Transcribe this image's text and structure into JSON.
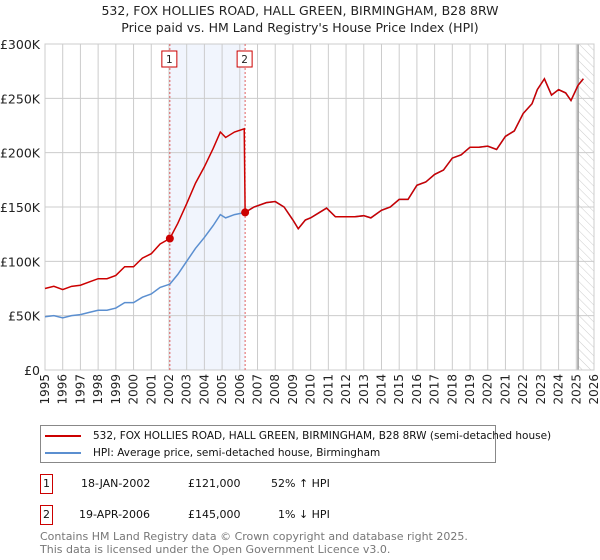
{
  "chart_data": {
    "type": "line",
    "title": "532, FOX HOLLIES ROAD, HALL GREEN, BIRMINGHAM, B28 8RW",
    "subtitle": "Price paid vs. HM Land Registry's House Price Index (HPI)",
    "xlim": [
      1995,
      2026
    ],
    "ylim": [
      0,
      300000
    ],
    "grid": true,
    "x_ticks": [
      "1995",
      "1996",
      "1997",
      "1998",
      "1999",
      "2000",
      "2001",
      "2002",
      "2003",
      "2004",
      "2005",
      "2006",
      "2007",
      "2008",
      "2009",
      "2010",
      "2011",
      "2012",
      "2013",
      "2014",
      "2015",
      "2016",
      "2017",
      "2018",
      "2019",
      "2020",
      "2021",
      "2022",
      "2023",
      "2024",
      "2025",
      "2026"
    ],
    "y_ticks": [
      {
        "v": 0,
        "label": "£0"
      },
      {
        "v": 50000,
        "label": "£50K"
      },
      {
        "v": 100000,
        "label": "£100K"
      },
      {
        "v": 150000,
        "label": "£150K"
      },
      {
        "v": 200000,
        "label": "£200K"
      },
      {
        "v": 250000,
        "label": "£250K"
      },
      {
        "v": 300000,
        "label": "£300K"
      }
    ],
    "series": [
      {
        "name": "532, FOX HOLLIES ROAD, HALL GREEN, BIRMINGHAM, B28 8RW (semi-detached house)",
        "color": "#cc0000",
        "x": [
          1995.0,
          1995.5,
          1996.0,
          1996.5,
          1997.0,
          1997.5,
          1998.0,
          1998.5,
          1999.0,
          1999.5,
          2000.0,
          2000.5,
          2001.0,
          2001.5,
          2002.05,
          2002.5,
          2003.0,
          2003.5,
          2004.0,
          2004.5,
          2004.9,
          2005.2,
          2005.7,
          2006.25,
          2006.3,
          2006.8,
          2007.5,
          2008.0,
          2008.5,
          2009.0,
          2009.3,
          2009.7,
          2010.0,
          2010.5,
          2010.9,
          2011.4,
          2012.0,
          2012.5,
          2013.0,
          2013.4,
          2014.0,
          2014.5,
          2015.0,
          2015.5,
          2016.0,
          2016.5,
          2017.0,
          2017.5,
          2018.0,
          2018.5,
          2019.0,
          2019.5,
          2020.0,
          2020.5,
          2021.0,
          2021.5,
          2022.0,
          2022.5,
          2022.8,
          2023.2,
          2023.6,
          2024.0,
          2024.4,
          2024.7,
          2025.1,
          2025.4
        ],
        "y": [
          75000,
          77000,
          74000,
          77000,
          78000,
          81000,
          84000,
          84000,
          87000,
          95000,
          95000,
          103000,
          107000,
          116000,
          121000,
          135000,
          153000,
          172000,
          187000,
          204000,
          219000,
          214000,
          219000,
          222000,
          145000,
          150000,
          154000,
          155000,
          150000,
          138000,
          130000,
          138000,
          140000,
          145000,
          149000,
          141000,
          141000,
          141000,
          142000,
          140000,
          147000,
          150000,
          157000,
          157000,
          170000,
          173000,
          180000,
          184000,
          195000,
          198000,
          205000,
          205000,
          206000,
          203000,
          215000,
          220000,
          236000,
          245000,
          258000,
          268000,
          253000,
          258000,
          255000,
          248000,
          262000,
          268000
        ]
      },
      {
        "name": "HPI: Average price, semi-detached house, Birmingham",
        "color": "#5b8fd0",
        "x": [
          1995.0,
          1995.5,
          1996.0,
          1996.5,
          1997.0,
          1997.5,
          1998.0,
          1998.5,
          1999.0,
          1999.5,
          2000.0,
          2000.5,
          2001.0,
          2001.5,
          2002.05,
          2002.5,
          2003.0,
          2003.5,
          2004.0,
          2004.5,
          2004.9,
          2005.2,
          2005.7,
          2006.3,
          2006.8,
          2007.5,
          2008.0,
          2008.5,
          2009.0,
          2009.3,
          2009.7,
          2010.0,
          2010.5,
          2010.9,
          2011.4,
          2012.0,
          2012.5,
          2013.0,
          2013.4,
          2014.0,
          2014.5,
          2015.0,
          2015.5,
          2016.0,
          2016.5,
          2017.0,
          2017.5,
          2018.0,
          2018.5,
          2019.0,
          2019.5,
          2020.0,
          2020.5,
          2021.0,
          2021.5,
          2022.0,
          2022.5,
          2022.8,
          2023.2,
          2023.6,
          2024.0,
          2024.4,
          2024.7,
          2025.1,
          2025.4
        ],
        "y": [
          49000,
          50000,
          48000,
          50000,
          51000,
          53000,
          55000,
          55000,
          57000,
          62000,
          62000,
          67000,
          70000,
          76000,
          79000,
          88000,
          100000,
          112000,
          122000,
          133000,
          143000,
          140000,
          143000,
          145000,
          150000,
          154000,
          155000,
          150000,
          138000,
          130000,
          138000,
          140000,
          145000,
          149000,
          141000,
          141000,
          141000,
          142000,
          140000,
          147000,
          150000,
          157000,
          157000,
          170000,
          173000,
          180000,
          184000,
          195000,
          198000,
          205000,
          205000,
          206000,
          203000,
          215000,
          220000,
          236000,
          245000,
          258000,
          268000,
          253000,
          258000,
          255000,
          248000,
          262000,
          268000
        ]
      }
    ],
    "sales": [
      {
        "label": "1",
        "x": 2002.05,
        "y": 121000
      },
      {
        "label": "2",
        "x": 2006.3,
        "y": 145000
      }
    ],
    "projection_start": 2025.1
  },
  "transactions": [
    {
      "num": "1",
      "date": "18-JAN-2002",
      "price": "£121,000",
      "hpi": "52% ↑ HPI"
    },
    {
      "num": "2",
      "date": "19-APR-2006",
      "price": "£145,000",
      "hpi": "1% ↓ HPI"
    }
  ],
  "footer": [
    "Contains HM Land Registry data © Crown copyright and database right 2025.",
    "This data is licensed under the Open Government Licence v3.0."
  ]
}
